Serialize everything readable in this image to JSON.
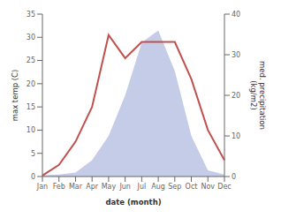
{
  "chart_data": {
    "type": "line",
    "categories": [
      "Jan",
      "Feb",
      "Mar",
      "Apr",
      "May",
      "Jun",
      "Jul",
      "Aug",
      "Sep",
      "Oct",
      "Nov",
      "Dec"
    ],
    "xlabel": "date (month)",
    "ylabel": "max temp (C)",
    "y2label": "med. precipitation\n(kg/m2)",
    "ylim": [
      0,
      35
    ],
    "yticks": [
      0,
      5,
      10,
      15,
      20,
      25,
      30,
      35
    ],
    "y2lim": [
      0,
      40
    ],
    "y2ticks": [
      0,
      10,
      20,
      30,
      40
    ],
    "grid": false,
    "series": [
      {
        "type": "area",
        "axis": "y2",
        "color": "#c5cce8",
        "values": [
          0.3,
          0.5,
          1.0,
          4.0,
          10.0,
          20.0,
          33.0,
          36.0,
          26.0,
          10.0,
          1.5,
          0.5
        ]
      },
      {
        "type": "line",
        "color": "#c0504d",
        "values": [
          0.2,
          2.5,
          7.5,
          15.0,
          30.5,
          25.5,
          29.0,
          29.0,
          29.0,
          21.0,
          10.0,
          3.5
        ]
      }
    ]
  }
}
